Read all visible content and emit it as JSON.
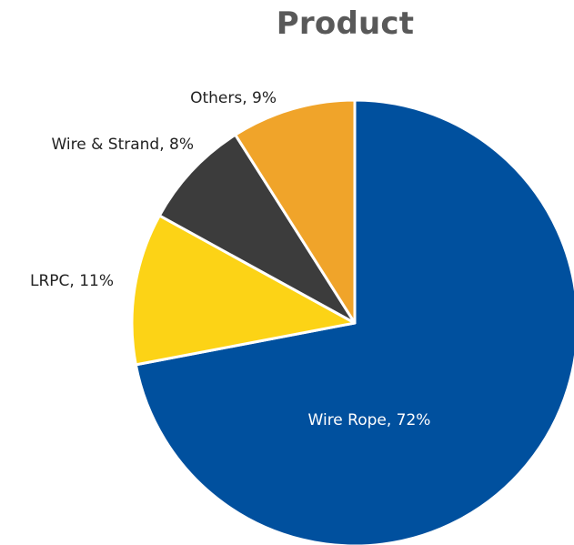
{
  "chart_data": {
    "type": "pie",
    "title": "Product",
    "slices": [
      {
        "label": "Wire Rope",
        "value": 72,
        "data_label": "Wire Rope, 72%",
        "color": "#00509E",
        "label_color": "#FFFFFF"
      },
      {
        "label": "LRPC",
        "value": 11,
        "data_label": "LRPC, 11%",
        "color": "#FCD316",
        "label_color": "#222222"
      },
      {
        "label": "Wire & Strand",
        "value": 8,
        "data_label": "Wire & Strand, 8%",
        "color": "#3C3C3C",
        "label_color": "#222222"
      },
      {
        "label": "Others",
        "value": 9,
        "data_label": "Others, 9%",
        "color": "#F0A42A",
        "label_color": "#222222"
      }
    ],
    "start_angle": "12 o'clock",
    "direction": "clockwise",
    "slice_border_color": "#FFFFFF",
    "legend": "none",
    "label_position": "Wire Rope inside, others outside"
  }
}
